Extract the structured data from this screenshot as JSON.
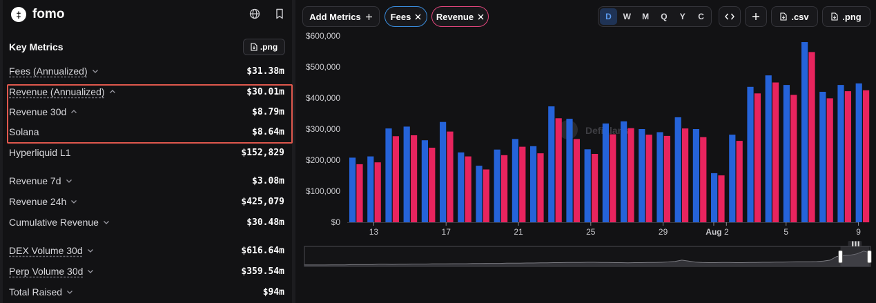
{
  "brand": {
    "name": "fomo",
    "logo_text": "‡"
  },
  "left": {
    "title": "Key Metrics",
    "png_button": ".png",
    "metrics": [
      {
        "label": "Fees (Annualized)",
        "value": "$31.38m",
        "underlined": true,
        "chevron": "down"
      },
      {
        "label": "Revenue (Annualized)",
        "value": "$30.01m",
        "underlined": true,
        "chevron": "up"
      },
      {
        "label": "Revenue 30d",
        "value": "$8.79m",
        "underlined": false,
        "chevron": "up"
      },
      {
        "label": "Solana",
        "value": "$8.64m",
        "underlined": false,
        "chevron": ""
      },
      {
        "label": "Hyperliquid L1",
        "value": "$152,829",
        "underlined": false,
        "chevron": ""
      },
      {
        "label": "Revenue 7d",
        "value": "$3.08m",
        "underlined": false,
        "chevron": "down"
      },
      {
        "label": "Revenue 24h",
        "value": "$425,079",
        "underlined": false,
        "chevron": "down"
      },
      {
        "label": "Cumulative Revenue",
        "value": "$30.48m",
        "underlined": false,
        "chevron": "down"
      },
      {
        "label": "DEX Volume 30d",
        "value": "$616.64m",
        "underlined": true,
        "chevron": "down"
      },
      {
        "label": "Perp Volume 30d",
        "value": "$359.54m",
        "underlined": true,
        "chevron": "down"
      },
      {
        "label": "Total Raised",
        "value": "$94m",
        "underlined": false,
        "chevron": "down"
      }
    ]
  },
  "toolbar": {
    "add_metrics": "Add Metrics",
    "pill_fees": "Fees",
    "pill_revenue": "Revenue",
    "periods": [
      "D",
      "W",
      "M",
      "Q",
      "Y",
      "C"
    ],
    "active_period": "D",
    "csv": ".csv",
    "png": ".png"
  },
  "colors": {
    "fees": "#2563d9",
    "revenue": "#e8245e",
    "accent": "#5b9bf0",
    "highlight": "#e0584d"
  },
  "watermark": "DefiLlama",
  "chart_data": {
    "type": "bar",
    "series": [
      {
        "name": "Fees",
        "values": [
          208000,
          212000,
          302000,
          308000,
          264000,
          323000,
          225000,
          182000,
          234000,
          268000,
          245000,
          373000,
          333000,
          235000,
          318000,
          325000,
          300000,
          290000,
          338000,
          300000,
          158000,
          282000,
          436000,
          473000,
          442000,
          580000,
          420000,
          442000,
          447000
        ]
      },
      {
        "name": "Revenue",
        "values": [
          187000,
          193000,
          277000,
          280000,
          240000,
          292000,
          212000,
          170000,
          216000,
          243000,
          222000,
          335000,
          268000,
          220000,
          283000,
          303000,
          282000,
          278000,
          302000,
          274000,
          151000,
          262000,
          415000,
          450000,
          410000,
          548000,
          399000,
          422000,
          425000
        ]
      }
    ],
    "x_tick_labels": [
      "13",
      "17",
      "21",
      "25",
      "29",
      "Aug",
      "2",
      "5",
      "9"
    ],
    "y_tick_labels": [
      "$0",
      "$100,000",
      "$200,000",
      "$300,000",
      "$400,000",
      "$500,000",
      "$600,000"
    ],
    "ylim": [
      0,
      600000
    ],
    "grid": false,
    "brush": {
      "handle_label": "▐▐▐",
      "overview": [
        0.08,
        0.08,
        0.08,
        0.08,
        0.09,
        0.09,
        0.09,
        0.1,
        0.1,
        0.1,
        0.1,
        0.12,
        0.12,
        0.11,
        0.12,
        0.12,
        0.13,
        0.13,
        0.13,
        0.14,
        0.14,
        0.14,
        0.15,
        0.15,
        0.15,
        0.16,
        0.16,
        0.17,
        0.17,
        0.17,
        0.18,
        0.18,
        0.18,
        0.19,
        0.19,
        0.2,
        0.2,
        0.21,
        0.21,
        0.22,
        0.22,
        0.22,
        0.23,
        0.23,
        0.22,
        0.22,
        0.21,
        0.21,
        0.2,
        0.21,
        0.21,
        0.22,
        0.22,
        0.23,
        0.25,
        0.28,
        0.35,
        0.3,
        0.24,
        0.22,
        0.21,
        0.21,
        0.22,
        0.22,
        0.21,
        0.21,
        0.22,
        0.22,
        0.23,
        0.23,
        0.24,
        0.24,
        0.25,
        0.26,
        0.26,
        0.26,
        0.27,
        0.3,
        0.35,
        0.55,
        0.6,
        0.62,
        0.7,
        0.85,
        0.75
      ]
    }
  }
}
